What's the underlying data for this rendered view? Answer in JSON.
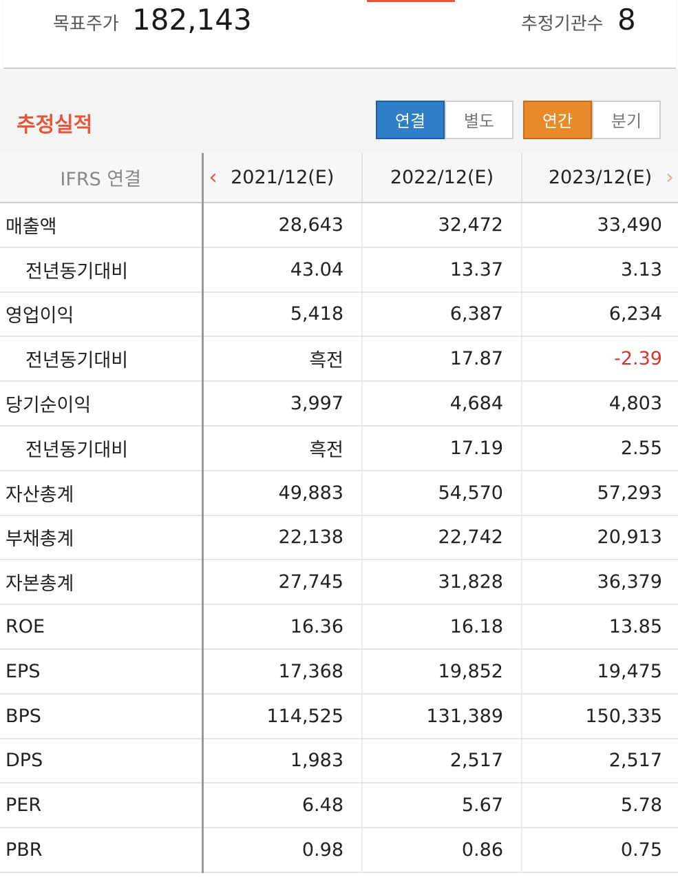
{
  "header": {
    "target_price_label": "목표주가",
    "target_price_value": "182,143",
    "institution_count_label": "추정기관수",
    "institution_count_value": "8"
  },
  "section": {
    "title": "추정실적",
    "toggle_scope": [
      "연결",
      "별도"
    ],
    "toggle_period": [
      "연간",
      "분기"
    ],
    "selected_scope": "연결",
    "selected_period": "연간"
  },
  "colors": {
    "accent": "#e8563a",
    "blue": "#2f7fc8",
    "orange": "#e88a2a",
    "negative": "#d9352b"
  },
  "table": {
    "label_header": "IFRS 연결",
    "columns": [
      "2021/12(E)",
      "2022/12(E)",
      "2023/12(E)"
    ],
    "rows": [
      {
        "label": "매출액",
        "sub": false,
        "values": [
          "28,643",
          "32,472",
          "33,490"
        ]
      },
      {
        "label": "전년동기대비",
        "sub": true,
        "values": [
          "43.04",
          "13.37",
          "3.13"
        ]
      },
      {
        "label": "영업이익",
        "sub": false,
        "values": [
          "5,418",
          "6,387",
          "6,234"
        ]
      },
      {
        "label": "전년동기대비",
        "sub": true,
        "values": [
          "흑전",
          "17.87",
          "-2.39"
        ]
      },
      {
        "label": "당기순이익",
        "sub": false,
        "values": [
          "3,997",
          "4,684",
          "4,803"
        ]
      },
      {
        "label": "전년동기대비",
        "sub": true,
        "values": [
          "흑전",
          "17.19",
          "2.55"
        ]
      },
      {
        "label": "자산총계",
        "sub": false,
        "values": [
          "49,883",
          "54,570",
          "57,293"
        ]
      },
      {
        "label": "부채총계",
        "sub": false,
        "values": [
          "22,138",
          "22,742",
          "20,913"
        ]
      },
      {
        "label": "자본총계",
        "sub": false,
        "values": [
          "27,745",
          "31,828",
          "36,379"
        ]
      },
      {
        "label": "ROE",
        "sub": false,
        "values": [
          "16.36",
          "16.18",
          "13.85"
        ]
      },
      {
        "label": "EPS",
        "sub": false,
        "values": [
          "17,368",
          "19,852",
          "19,475"
        ]
      },
      {
        "label": "BPS",
        "sub": false,
        "values": [
          "114,525",
          "131,389",
          "150,335"
        ]
      },
      {
        "label": "DPS",
        "sub": false,
        "values": [
          "1,983",
          "2,517",
          "2,517"
        ]
      },
      {
        "label": "PER",
        "sub": false,
        "values": [
          "6.48",
          "5.67",
          "5.78"
        ]
      },
      {
        "label": "PBR",
        "sub": false,
        "values": [
          "0.98",
          "0.86",
          "0.75"
        ]
      }
    ]
  }
}
